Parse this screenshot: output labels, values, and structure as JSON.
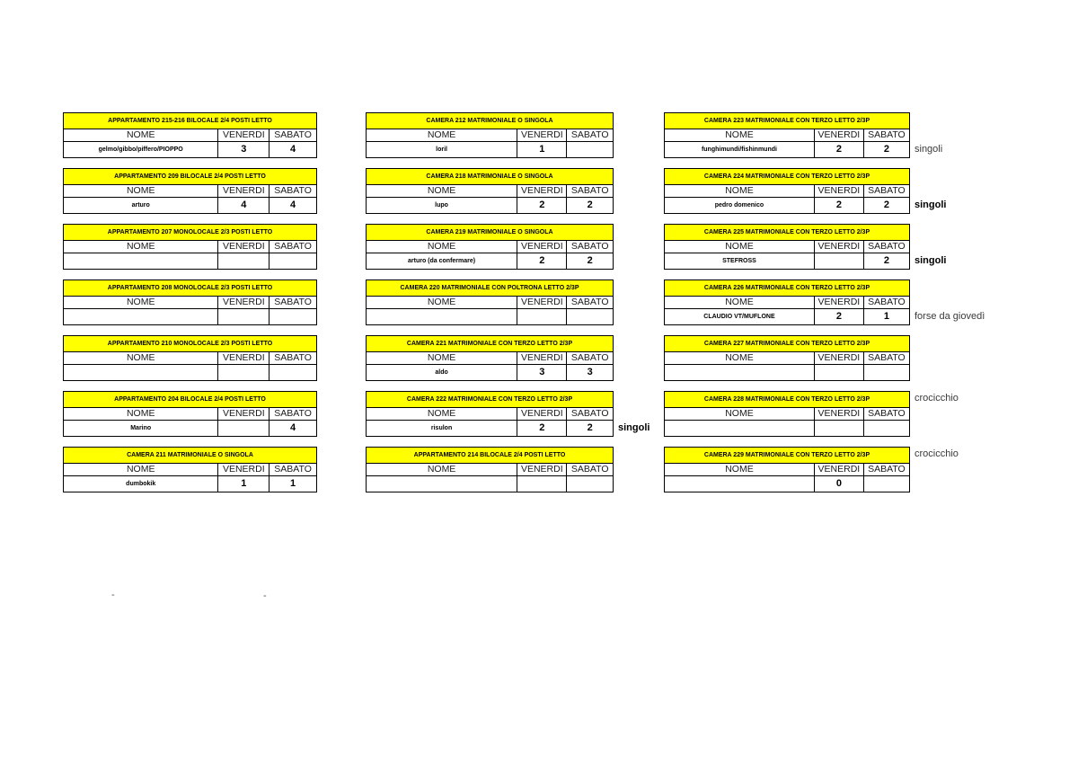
{
  "colors": {
    "header_bg": "#ffff00",
    "border": "#000000",
    "text": "#000000"
  },
  "column_headers": {
    "nome": "NOME",
    "venerdi": "VENERDI",
    "sabato": "SABATO"
  },
  "columns": [
    {
      "tables": [
        {
          "title": "APPARTAMENTO 215-216 BILOCALE 2/4 POSTI LETTO",
          "nome": "gelmo/gibbo/piffero/PIOPPO",
          "venerdi": "3",
          "sabato": "4",
          "note": ""
        },
        {
          "title": "APPARTAMENTO 209 BILOCALE 2/4 POSTI LETTO",
          "nome": "arturo",
          "venerdi": "4",
          "sabato": "4",
          "note": ""
        },
        {
          "title": "APPARTAMENTO 207 MONOLOCALE 2/3 POSTI LETTO",
          "nome": "",
          "venerdi": "",
          "sabato": "",
          "note": ""
        },
        {
          "title": "APPARTAMENTO 208 MONOLOCALE 2/3 POSTI LETTO",
          "nome": "",
          "venerdi": "",
          "sabato": "",
          "note": ""
        },
        {
          "title": "APPARTAMENTO 210 MONOLOCALE 2/3 POSTI LETTO",
          "nome": "",
          "venerdi": "",
          "sabato": "",
          "note": ""
        },
        {
          "title": "APPARTAMENTO 204 BILOCALE 2/4 POSTI LETTO",
          "nome": "Marino",
          "venerdi": "",
          "sabato": "4",
          "note": ""
        },
        {
          "title": "CAMERA 211 MATRIMONIALE O SINGOLA",
          "nome": "dumbokik",
          "venerdi": "1",
          "sabato": "1",
          "note": ""
        }
      ]
    },
    {
      "tables": [
        {
          "title": "CAMERA 212 MATRIMONIALE O SINGOLA",
          "nome": "loril",
          "venerdi": "1",
          "sabato": "",
          "note": ""
        },
        {
          "title": "CAMERA 218 MATRIMONIALE O SINGOLA",
          "nome": "lupo",
          "venerdi": "2",
          "sabato": "2",
          "note": ""
        },
        {
          "title": "CAMERA 219 MATRIMONIALE O SINGOLA",
          "nome": "arturo (da confermare)",
          "venerdi": "2",
          "sabato": "2",
          "note": ""
        },
        {
          "title": "CAMERA 220 MATRIMONIALE CON POLTRONA LETTO 2/3P",
          "nome": "",
          "venerdi": "",
          "sabato": "",
          "note": ""
        },
        {
          "title": "CAMERA 221 MATRIMONIALE CON TERZO LETTO 2/3P",
          "nome": "aldo",
          "venerdi": "3",
          "sabato": "3",
          "note": ""
        },
        {
          "title": "CAMERA 222 MATRIMONIALE CON TERZO LETTO 2/3P",
          "nome": "risulon",
          "venerdi": "2",
          "sabato": "2",
          "note": "singoli",
          "note_bold": true,
          "note_at": "data"
        },
        {
          "title": "APPARTAMENTO 214 BILOCALE 2/4 POSTI LETTO",
          "nome": "",
          "venerdi": "",
          "sabato": "",
          "note": ""
        }
      ]
    },
    {
      "tables": [
        {
          "title": "CAMERA 223 MATRIMONIALE CON TERZO LETTO 2/3P",
          "nome": "funghimundi/fishinmundi",
          "venerdi": "2",
          "sabato": "2",
          "note": "singoli",
          "note_bold": false,
          "note_at": "data"
        },
        {
          "title": "CAMERA 224 MATRIMONIALE CON TERZO LETTO 2/3P",
          "nome": "pedro domenico",
          "venerdi": "2",
          "sabato": "2",
          "note": "singoli",
          "note_bold": true,
          "note_at": "data"
        },
        {
          "title": "CAMERA 225 MATRIMONIALE CON TERZO LETTO 2/3P",
          "nome": "STEFROSS",
          "venerdi": "",
          "sabato": "2",
          "note": "singoli",
          "note_bold": true,
          "note_at": "data"
        },
        {
          "title": "CAMERA 226 MATRIMONIALE CON TERZO LETTO 2/3P",
          "nome": "CLAUDIO VT/MUFLONE",
          "venerdi": "2",
          "sabato": "1",
          "note": "forse da giovedì",
          "note_bold": false,
          "note_at": "data"
        },
        {
          "title": "CAMERA 227 MATRIMONIALE CON TERZO LETTO 2/3P",
          "nome": "",
          "venerdi": "",
          "sabato": "",
          "note": ""
        },
        {
          "title": "CAMERA 228 MATRIMONIALE CON TERZO LETTO 2/3P",
          "nome": "",
          "venerdi": "",
          "sabato": "",
          "note": "crocicchio",
          "note_bold": false,
          "note_at": "header"
        },
        {
          "title": "CAMERA 229 MATRIMONIALE CON TERZO LETTO 2/3P",
          "nome": "",
          "venerdi": "0",
          "sabato": "",
          "note": "crocicchio",
          "note_bold": false,
          "note_at": "header"
        }
      ]
    }
  ],
  "stray_marks": [
    {
      "text": "-"
    },
    {
      "text": "-"
    }
  ]
}
